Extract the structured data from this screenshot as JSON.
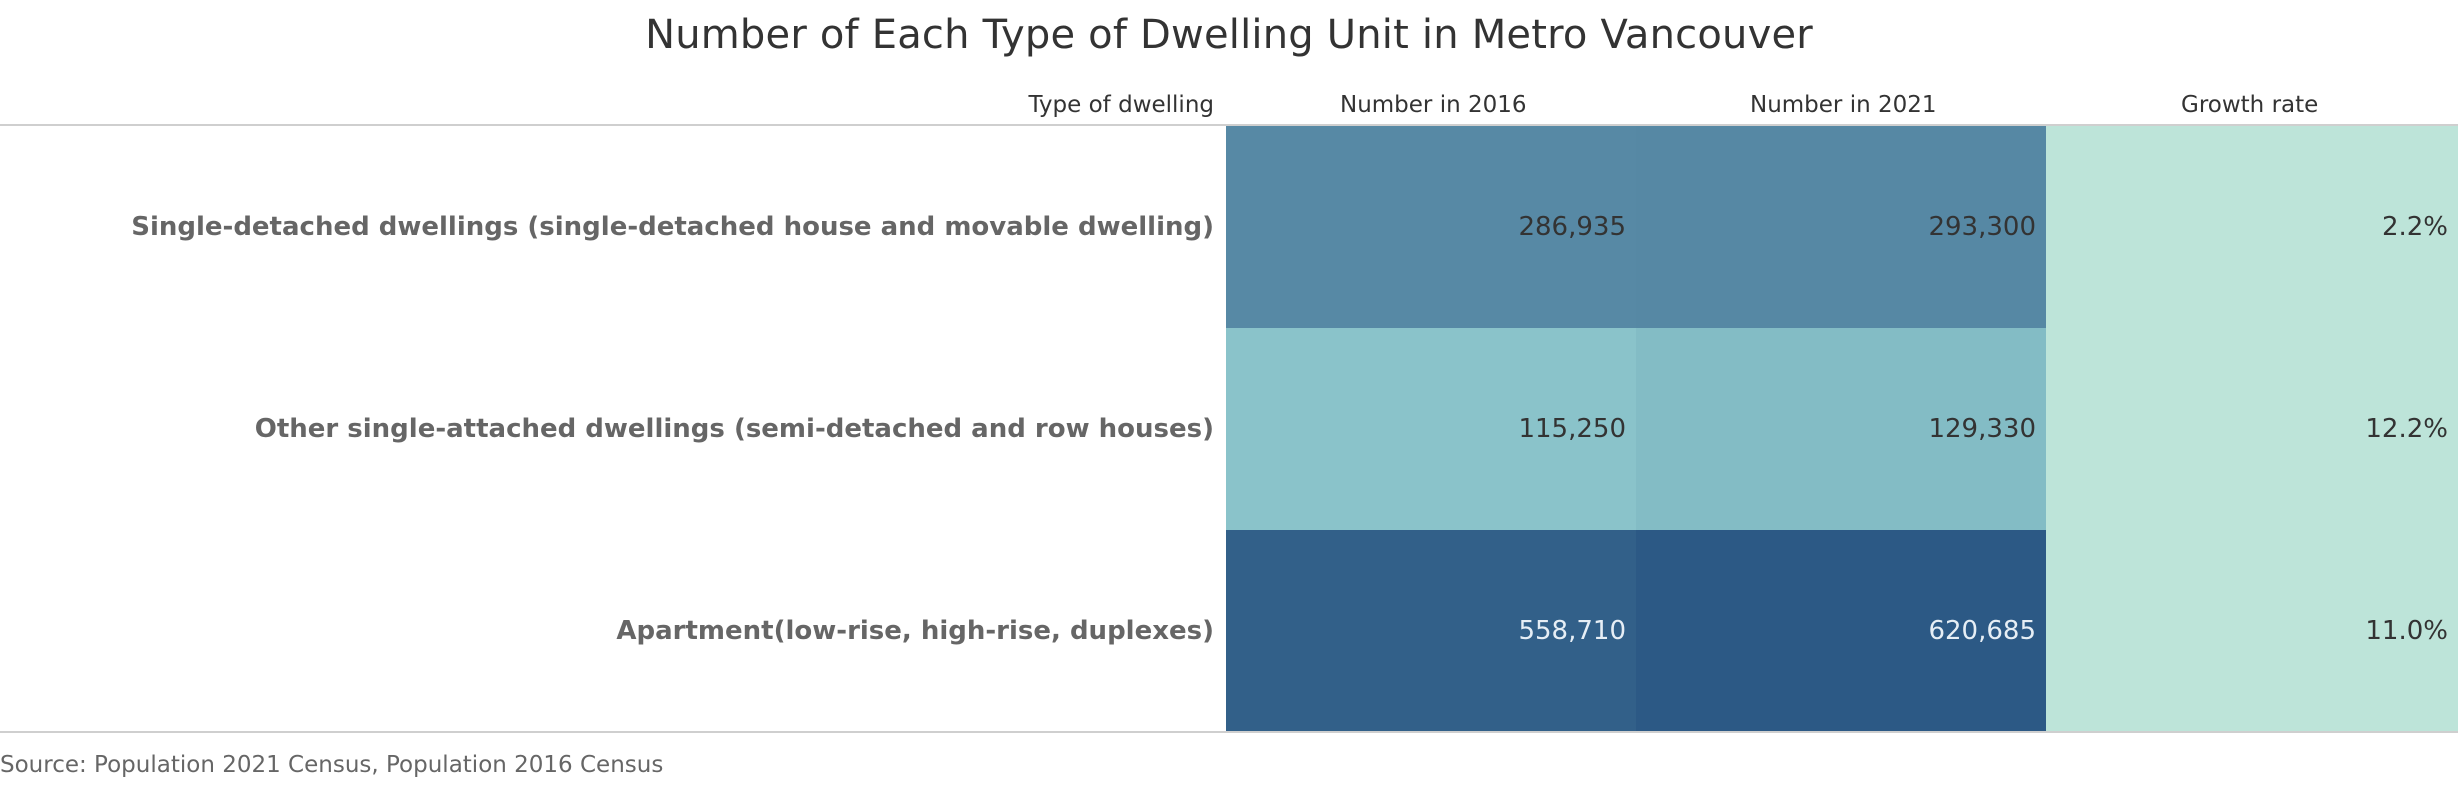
{
  "chart_data": {
    "type": "table",
    "title": "Number of Each Type of Dwelling Unit in Metro Vancouver",
    "columns": {
      "type": "Type of dwelling",
      "y2016": "Number in 2016",
      "y2021": "Number in 2021",
      "growth": "Growth rate"
    },
    "rows": [
      {
        "label": "Single-detached dwellings (single-detached house and movable dwelling)",
        "n2016": 286935,
        "n2016_text": "286,935",
        "n2021": 293300,
        "n2021_text": "293,300",
        "growth": 2.2,
        "growth_text": "2.2%"
      },
      {
        "label": "Other single-attached dwellings (semi-detached and row houses)",
        "n2016": 115250,
        "n2016_text": "115,250",
        "n2021": 129330,
        "n2021_text": "129,330",
        "growth": 12.2,
        "growth_text": "12.2%"
      },
      {
        "label": "Apartment(low-rise, high-rise, duplexes)",
        "n2016": 558710,
        "n2016_text": "558,710",
        "n2021": 620685,
        "n2021_text": "620,685",
        "growth": 11.0,
        "growth_text": "11.0%"
      }
    ],
    "colors": {
      "high": "#2c5985",
      "low": "#92ccd0",
      "growth": "#bde4d9",
      "text_dark": "#333333",
      "text_light": "#e6eef5"
    }
  },
  "source": "Source: Population 2021 Census, Population 2016 Census"
}
